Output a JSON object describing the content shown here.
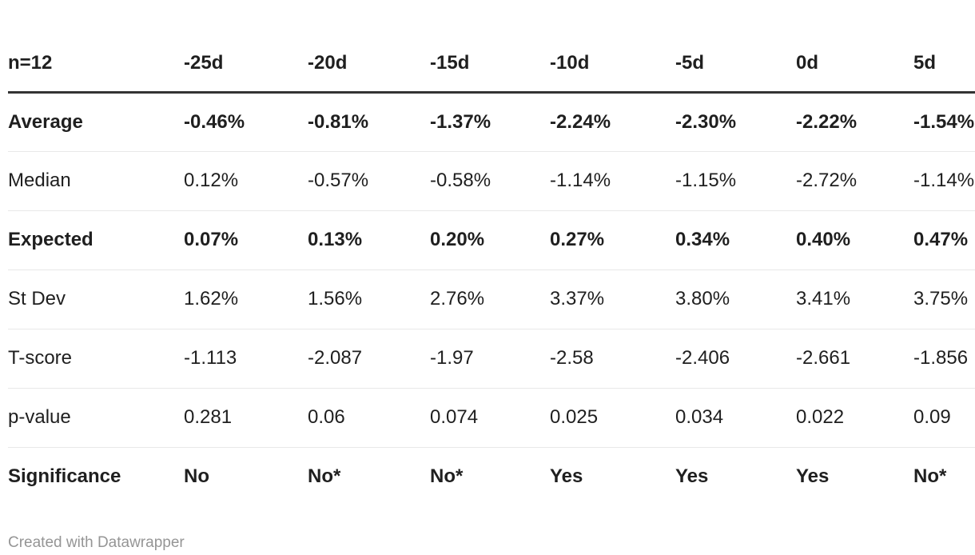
{
  "chart_data": {
    "type": "table",
    "title": "",
    "columns": [
      "n=12",
      "-25d",
      "-20d",
      "-15d",
      "-10d",
      "-5d",
      "0d",
      "5d"
    ],
    "rows": [
      {
        "label": "Average",
        "bold": true,
        "values": [
          "-0.46%",
          "-0.81%",
          "-1.37%",
          "-2.24%",
          "-2.30%",
          "-2.22%",
          "-1.54%"
        ]
      },
      {
        "label": "Median",
        "bold": false,
        "values": [
          "0.12%",
          "-0.57%",
          "-0.58%",
          "-1.14%",
          "-1.15%",
          "-2.72%",
          "-1.14%"
        ]
      },
      {
        "label": "Expected",
        "bold": true,
        "values": [
          "0.07%",
          "0.13%",
          "0.20%",
          "0.27%",
          "0.34%",
          "0.40%",
          "0.47%"
        ]
      },
      {
        "label": "St Dev",
        "bold": false,
        "values": [
          "1.62%",
          "1.56%",
          "2.76%",
          "3.37%",
          "3.80%",
          "3.41%",
          "3.75%"
        ]
      },
      {
        "label": "T-score",
        "bold": false,
        "values": [
          "-1.113",
          "-2.087",
          "-1.97",
          "-2.58",
          "-2.406",
          "-2.661",
          "-1.856"
        ]
      },
      {
        "label": "p-value",
        "bold": false,
        "values": [
          "0.281",
          "0.06",
          "0.074",
          "0.025",
          "0.034",
          "0.022",
          "0.09"
        ]
      },
      {
        "label": "Significance",
        "bold": true,
        "values": [
          "No",
          "No*",
          "No*",
          "Yes",
          "Yes",
          "Yes",
          "No*"
        ]
      }
    ],
    "layout_hints": {
      "first_column_header": "n=12",
      "column_alignment": "left",
      "cut_off_right_edge": true
    }
  },
  "footer": {
    "credit": "Created with Datawrapper"
  },
  "colors": {
    "text": "#1f1f1f",
    "header_rule": "#333333",
    "row_rule": "#e8e8e8",
    "credit": "#959595",
    "background": "#ffffff"
  }
}
